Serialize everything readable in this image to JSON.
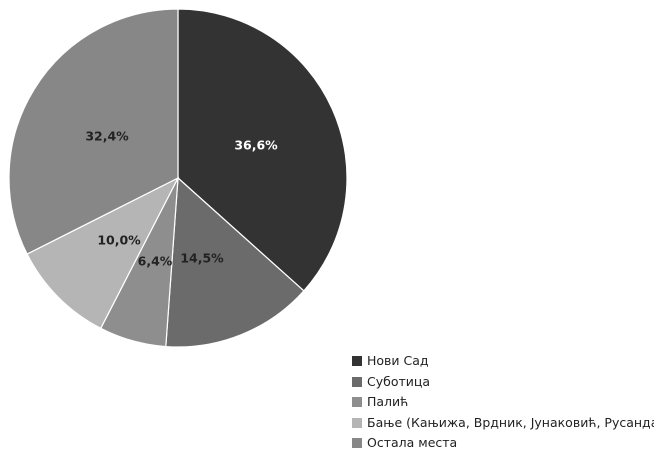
{
  "chart_data": {
    "type": "pie",
    "title": "",
    "start_angle_deg": 0,
    "direction": "clockwise",
    "legend_position": "bottom-right",
    "slices": [
      {
        "label": "Нови Сад",
        "value": 36.6,
        "display": "36,6%",
        "color": "#333333",
        "label_color": "#ffffff"
      },
      {
        "label": "Суботица",
        "value": 14.5,
        "display": "14,5%",
        "color": "#6b6b6b",
        "label_color": "#222222"
      },
      {
        "label": "Палић",
        "value": 6.4,
        "display": "6,4%",
        "color": "#8e8e8e",
        "label_color": "#222222"
      },
      {
        "label": "Бање (Кањижа, Врдник, Јунаковић, Русанда)",
        "value": 10.0,
        "display": "10,0%",
        "color": "#b5b5b5",
        "label_color": "#222222"
      },
      {
        "label": "Остала места",
        "value": 32.4,
        "display": "32,4%",
        "color": "#878787",
        "label_color": "#222222"
      }
    ]
  }
}
